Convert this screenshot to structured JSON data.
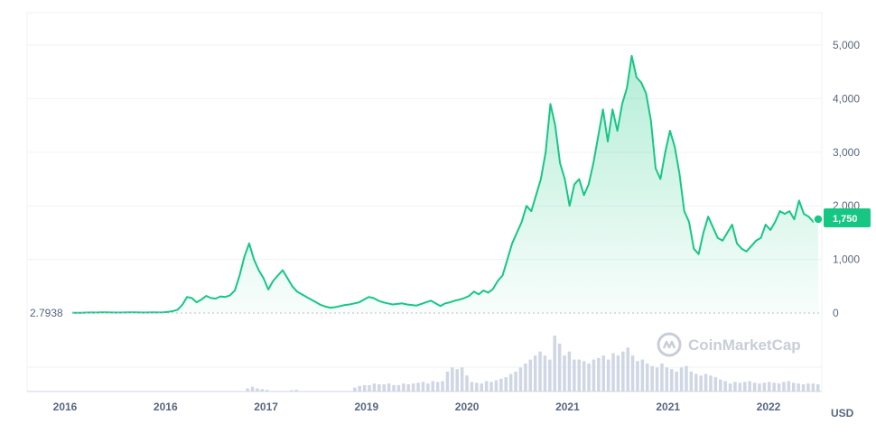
{
  "chart_data": {
    "type": "area",
    "currency": "USD",
    "baseline_label": "2.7938",
    "current_price_label": "1,750",
    "ylim": [
      0,
      5000
    ],
    "y_ticks": [
      0,
      1000,
      2000,
      3000,
      4000,
      5000
    ],
    "y_tick_labels": [
      "0",
      "1,000",
      "2,000",
      "3,000",
      "4,000",
      "5,000"
    ],
    "x_tick_labels": [
      "2016",
      "2016",
      "2017",
      "2019",
      "2020",
      "2021",
      "2021",
      "2022"
    ],
    "grid": true,
    "colors": {
      "line": "#16c784",
      "area": "#16c784",
      "baseline": "#b7bdc6",
      "volume": "#cfd6e4",
      "text": "#58667e"
    },
    "series": [
      {
        "values": [
          2.79,
          3,
          5,
          8,
          10,
          9,
          11,
          12,
          10,
          9,
          8,
          10,
          12,
          11,
          10,
          9,
          10,
          12,
          10,
          14,
          20,
          35,
          60,
          150,
          300,
          280,
          200,
          250,
          320,
          280,
          270,
          310,
          300,
          330,
          420,
          700,
          1050,
          1300,
          1000,
          800,
          650,
          440,
          600,
          700,
          800,
          650,
          500,
          400,
          350,
          300,
          250,
          200,
          150,
          120,
          100,
          110,
          130,
          150,
          160,
          180,
          200,
          250,
          300,
          280,
          230,
          200,
          180,
          160,
          170,
          180,
          160,
          150,
          140,
          170,
          200,
          230,
          180,
          130,
          180,
          200,
          230,
          250,
          280,
          320,
          400,
          350,
          420,
          380,
          450,
          600,
          700,
          1000,
          1300,
          1500,
          1700,
          2000,
          1900,
          2200,
          2500,
          3000,
          3900,
          3500,
          2800,
          2500,
          2000,
          2400,
          2500,
          2200,
          2400,
          2800,
          3300,
          3800,
          3200,
          3800,
          3400,
          3900,
          4200,
          4800,
          4400,
          4300,
          4100,
          3600,
          2700,
          2500,
          3000,
          3400,
          3100,
          2600,
          1900,
          1700,
          1200,
          1100,
          1500,
          1800,
          1600,
          1400,
          1350,
          1500,
          1650,
          1300,
          1200,
          1150,
          1250,
          1350,
          1400,
          1650,
          1550,
          1700,
          1900,
          1850,
          1900,
          1750,
          2100,
          1850,
          1800,
          1700,
          1750
        ]
      }
    ],
    "volume": [
      0,
      0,
      0,
      0,
      0,
      0,
      0,
      0,
      0,
      0,
      0,
      0,
      0,
      0,
      0,
      0,
      0,
      0,
      0,
      0,
      0,
      0,
      0,
      0,
      0,
      0,
      0,
      0,
      0,
      0,
      0,
      0,
      0,
      0,
      0,
      0,
      0.4,
      0.6,
      0.4,
      0.3,
      0.2,
      0,
      0,
      0,
      0,
      0.15,
      0.2,
      0,
      0,
      0,
      0,
      0,
      0,
      0,
      0,
      0,
      0,
      0,
      0.5,
      0.7,
      0.8,
      0.8,
      1,
      0.9,
      0.9,
      1,
      0.8,
      0.8,
      1,
      0.9,
      1,
      1.1,
      1.2,
      1,
      1.3,
      1.2,
      1.3,
      2.5,
      3,
      2.8,
      3,
      2,
      1.2,
      1.1,
      1,
      1.3,
      1.2,
      1.4,
      1.6,
      1.8,
      2.2,
      2.5,
      3,
      3.5,
      4,
      4.5,
      5,
      4.5,
      4,
      7,
      6,
      4.5,
      5,
      4,
      4,
      3.8,
      3.5,
      4,
      4.2,
      4.5,
      4,
      4.8,
      4.5,
      5,
      5.5,
      4.5,
      3.8,
      4,
      3.5,
      3.2,
      3,
      3.5,
      3,
      2.8,
      2.5,
      3,
      3.2,
      2.5,
      2.2,
      2,
      2.2,
      2,
      1.8,
      1.5,
      1.3,
      1,
      1.2,
      1.1,
      1.2,
      1.3,
      1.1,
      1,
      1.1,
      1.2,
      1.1,
      1,
      1.2,
      1.3,
      1.1,
      1,
      0.9,
      1,
      1,
      0.9
    ]
  },
  "watermark": {
    "brand": "CoinMarketCap",
    "icon": "coinmarketcap-logo-icon"
  }
}
